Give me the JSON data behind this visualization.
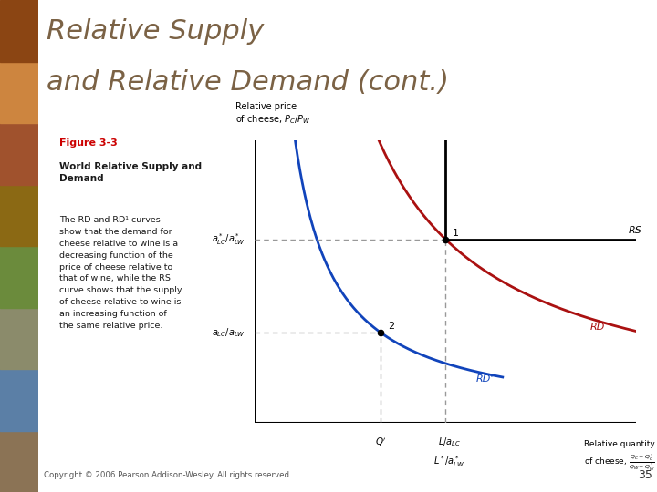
{
  "title_line1": "Relative Supply",
  "title_line2": "and Relative Demand (cont.)",
  "title_color": "#7B6245",
  "title_fontsize": 22,
  "bg_color": "#FFFFFF",
  "panel_bg": "#FEF9DC",
  "panel_border": "#C8B870",
  "figure_label": "Figure 3-3",
  "figure_label_color": "#CC0000",
  "figure_sublabel": "World Relative Supply and\nDemand",
  "body_text_line1": "The ",
  "body_text_rd": "RD",
  "body_text_line1b": " and ",
  "body_text_rd1": "RD¹",
  "body_text_rest": " curves\nshow that the demand for\ncheese relative to wine is a\ndecreasing function of the\nprice of cheese relative to\nthat of wine, while the ",
  "body_text_rs": "RS",
  "body_text_end": "\ncurve shows that the supply\nof cheese relative to wine is\nan increasing function of\nthe same relative price.",
  "copyright_text": "Copyright © 2006 Pearson Addison-Wesley. All rights reserved.",
  "page_number": "35",
  "rs_color": "#000000",
  "rd_color": "#AA1111",
  "rd2_color": "#1144BB",
  "dashed_color": "#999999",
  "strip_colors": [
    "#8B7355",
    "#5B7FA6",
    "#8B8B6B",
    "#6B8B3C",
    "#8B6914",
    "#A0522D",
    "#CD853F",
    "#8B4513"
  ],
  "y_star": 6.5,
  "y_low": 3.2,
  "x_Q": 3.3,
  "x_L": 5.0,
  "xlim": [
    0,
    10
  ],
  "ylim": [
    0,
    10
  ]
}
